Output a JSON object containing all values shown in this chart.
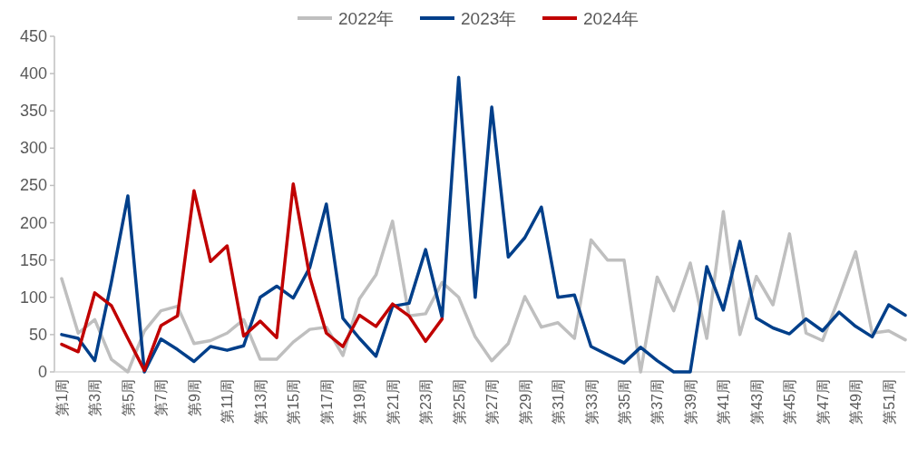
{
  "chart_data": {
    "type": "line",
    "categories": [
      "第1周",
      null,
      "第3周",
      null,
      "第5周",
      null,
      "第7周",
      null,
      "第9周",
      null,
      "第11周",
      null,
      "第13周",
      null,
      "第15周",
      null,
      "第17周",
      null,
      "第19周",
      null,
      "第21周",
      null,
      "第23周",
      null,
      "第25周",
      null,
      "第27周",
      null,
      "第29周",
      null,
      "第31周",
      null,
      "第33周",
      null,
      "第35周",
      null,
      "第37周",
      null,
      "第39周",
      null,
      "第41周",
      null,
      "第43周",
      null,
      "第45周",
      null,
      "第47周",
      null,
      "第49周",
      null,
      "第51周",
      null
    ],
    "series": [
      {
        "name": "2022年",
        "color": "#bfbfbf",
        "values": [
          125,
          52,
          70,
          17,
          0,
          55,
          82,
          88,
          38,
          42,
          52,
          70,
          17,
          17,
          40,
          57,
          60,
          22,
          98,
          130,
          202,
          75,
          78,
          120,
          100,
          47,
          15,
          38,
          101,
          60,
          66,
          45,
          177,
          150,
          150,
          0,
          127,
          82,
          146,
          45,
          215,
          50,
          128,
          90,
          185,
          52,
          42,
          100,
          161,
          52,
          55,
          43
        ]
      },
      {
        "name": "2023年",
        "color": "#003f8a",
        "values": [
          50,
          45,
          15,
          120,
          236,
          0,
          44,
          30,
          14,
          34,
          29,
          35,
          100,
          115,
          99,
          140,
          225,
          72,
          45,
          21,
          88,
          92,
          164,
          73,
          395,
          100,
          355,
          154,
          180,
          221,
          100,
          103,
          34,
          23,
          12,
          33,
          15,
          0,
          0,
          141,
          83,
          175,
          72,
          59,
          51,
          71,
          55,
          80,
          61,
          47,
          90,
          76
        ]
      },
      {
        "name": "2024年",
        "color": "#c00000",
        "values": [
          37,
          27,
          106,
          89,
          45,
          2,
          62,
          75,
          243,
          148,
          169,
          48,
          68,
          46,
          252,
          127,
          52,
          34,
          76,
          61,
          91,
          75,
          41,
          71,
          null,
          null,
          null,
          null,
          null,
          null,
          null,
          null,
          null,
          null,
          null,
          null,
          null,
          null,
          null,
          null,
          null,
          null,
          null,
          null,
          null,
          null,
          null,
          null,
          null,
          null,
          null,
          null
        ]
      }
    ],
    "ylim": [
      0,
      450
    ],
    "yticks": [
      0,
      50,
      100,
      150,
      200,
      250,
      300,
      350,
      400,
      450
    ],
    "grid": false,
    "legend": "top",
    "marker": "none",
    "line_style": "solid"
  }
}
